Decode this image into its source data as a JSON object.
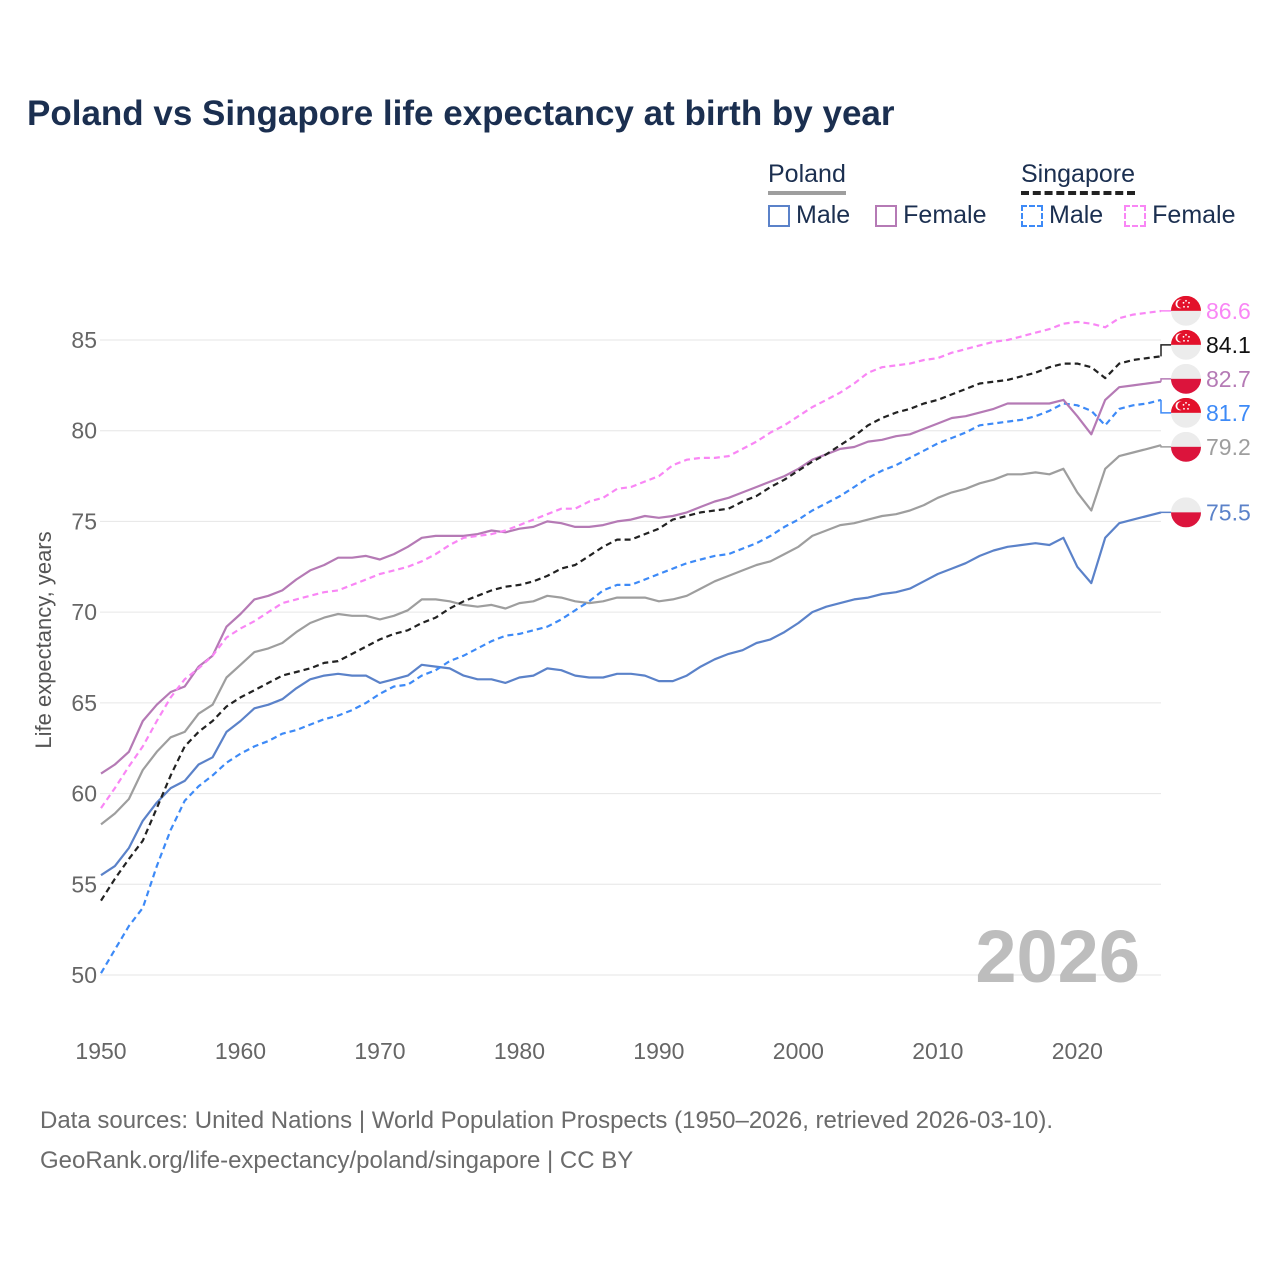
{
  "chart_data": {
    "type": "line",
    "title": "Poland vs Singapore life expectancy at birth by year",
    "xlabel": "",
    "ylabel": "Life expectancy, years",
    "xlim": [
      1950,
      2026
    ],
    "ylim": [
      48,
      88
    ],
    "x_ticks": [
      "1950",
      "1960",
      "1970",
      "1980",
      "1990",
      "2000",
      "2010",
      "2020"
    ],
    "y_ticks": [
      "50",
      "55",
      "60",
      "65",
      "70",
      "75",
      "80",
      "85"
    ],
    "grid": true,
    "current_year_label": "2026",
    "x_start": 1950,
    "legend": {
      "groups": [
        {
          "name": "Poland",
          "line_color": "#9e9e9e",
          "dashed": false,
          "items": [
            {
              "label": "Male",
              "color": "#5b82c9"
            },
            {
              "label": "Female",
              "color": "#b57ab5"
            }
          ]
        },
        {
          "name": "Singapore",
          "line_color": "#222222",
          "dashed": true,
          "items": [
            {
              "label": "Male",
              "color": "#3d8af7"
            },
            {
              "label": "Female",
              "color": "#f986f5"
            }
          ]
        }
      ]
    },
    "series": [
      {
        "name": "Singapore Female",
        "country": "singapore",
        "color": "#f986f5",
        "dashed": true,
        "end_label": "86.6",
        "values": [
          59.2,
          60.3,
          61.5,
          62.6,
          64.0,
          65.3,
          66.3,
          66.9,
          67.6,
          68.6,
          69.1,
          69.5,
          70.0,
          70.5,
          70.7,
          70.9,
          71.1,
          71.2,
          71.5,
          71.8,
          72.1,
          72.3,
          72.5,
          72.8,
          73.2,
          73.7,
          74.1,
          74.2,
          74.3,
          74.5,
          74.8,
          75.1,
          75.4,
          75.7,
          75.7,
          76.1,
          76.3,
          76.8,
          76.9,
          77.2,
          77.5,
          78.1,
          78.4,
          78.5,
          78.5,
          78.6,
          79.0,
          79.4,
          79.9,
          80.3,
          80.8,
          81.3,
          81.7,
          82.1,
          82.6,
          83.2,
          83.5,
          83.6,
          83.7,
          83.9,
          84.0,
          84.3,
          84.5,
          84.7,
          84.9,
          85.0,
          85.2,
          85.4,
          85.6,
          85.9,
          86.0,
          85.9,
          85.7,
          86.2,
          86.4,
          86.5,
          86.6
        ]
      },
      {
        "name": "Singapore",
        "country": "singapore",
        "color": "#222222",
        "dashed": true,
        "end_label": "84.1",
        "values": [
          54.1,
          55.3,
          56.4,
          57.4,
          59.2,
          61.0,
          62.6,
          63.4,
          64.0,
          64.8,
          65.3,
          65.7,
          66.1,
          66.5,
          66.7,
          66.9,
          67.2,
          67.3,
          67.7,
          68.1,
          68.5,
          68.8,
          69.0,
          69.4,
          69.7,
          70.2,
          70.6,
          70.9,
          71.2,
          71.4,
          71.5,
          71.7,
          72.0,
          72.4,
          72.6,
          73.1,
          73.6,
          74.0,
          74.0,
          74.3,
          74.6,
          75.1,
          75.3,
          75.5,
          75.6,
          75.7,
          76.1,
          76.4,
          76.9,
          77.3,
          77.8,
          78.3,
          78.7,
          79.2,
          79.7,
          80.3,
          80.7,
          81.0,
          81.2,
          81.5,
          81.7,
          82.0,
          82.3,
          82.6,
          82.7,
          82.8,
          83.0,
          83.2,
          83.5,
          83.7,
          83.7,
          83.5,
          82.9,
          83.7,
          83.9,
          84.0,
          84.1
        ]
      },
      {
        "name": "Poland Female",
        "country": "poland",
        "color": "#b57ab5",
        "dashed": false,
        "end_label": "82.7",
        "values": [
          61.1,
          61.6,
          62.3,
          64.0,
          64.9,
          65.6,
          65.9,
          67.0,
          67.6,
          69.2,
          69.9,
          70.7,
          70.9,
          71.2,
          71.8,
          72.3,
          72.6,
          73.0,
          73.0,
          73.1,
          72.9,
          73.2,
          73.6,
          74.1,
          74.2,
          74.2,
          74.2,
          74.3,
          74.5,
          74.4,
          74.6,
          74.7,
          75.0,
          74.9,
          74.7,
          74.7,
          74.8,
          75.0,
          75.1,
          75.3,
          75.2,
          75.3,
          75.5,
          75.8,
          76.1,
          76.3,
          76.6,
          76.9,
          77.2,
          77.5,
          77.9,
          78.4,
          78.7,
          79.0,
          79.1,
          79.4,
          79.5,
          79.7,
          79.8,
          80.1,
          80.4,
          80.7,
          80.8,
          81.0,
          81.2,
          81.5,
          81.5,
          81.5,
          81.5,
          81.7,
          80.8,
          79.8,
          81.7,
          82.4,
          82.5,
          82.6,
          82.7
        ]
      },
      {
        "name": "Singapore Male",
        "country": "singapore",
        "color": "#3d8af7",
        "dashed": true,
        "end_label": "81.7",
        "values": [
          50.1,
          51.4,
          52.7,
          53.7,
          56.0,
          58.0,
          59.6,
          60.4,
          61.0,
          61.7,
          62.2,
          62.6,
          62.9,
          63.3,
          63.5,
          63.8,
          64.1,
          64.3,
          64.6,
          65.0,
          65.5,
          65.9,
          66.0,
          66.5,
          66.8,
          67.3,
          67.6,
          68.0,
          68.4,
          68.7,
          68.8,
          69.0,
          69.2,
          69.6,
          70.1,
          70.6,
          71.2,
          71.5,
          71.5,
          71.8,
          72.1,
          72.4,
          72.7,
          72.9,
          73.1,
          73.2,
          73.5,
          73.8,
          74.2,
          74.7,
          75.1,
          75.6,
          76.0,
          76.4,
          76.9,
          77.4,
          77.8,
          78.1,
          78.5,
          78.9,
          79.3,
          79.6,
          79.9,
          80.3,
          80.4,
          80.5,
          80.6,
          80.8,
          81.1,
          81.5,
          81.4,
          81.1,
          80.3,
          81.2,
          81.4,
          81.5,
          81.7
        ]
      },
      {
        "name": "Poland",
        "country": "poland",
        "color": "#9e9e9e",
        "dashed": false,
        "end_label": "79.2",
        "values": [
          58.3,
          58.9,
          59.7,
          61.3,
          62.3,
          63.1,
          63.4,
          64.4,
          64.9,
          66.4,
          67.1,
          67.8,
          68.0,
          68.3,
          68.9,
          69.4,
          69.7,
          69.9,
          69.8,
          69.8,
          69.6,
          69.8,
          70.1,
          70.7,
          70.7,
          70.6,
          70.4,
          70.3,
          70.4,
          70.2,
          70.5,
          70.6,
          70.9,
          70.8,
          70.6,
          70.5,
          70.6,
          70.8,
          70.8,
          70.8,
          70.6,
          70.7,
          70.9,
          71.3,
          71.7,
          72.0,
          72.3,
          72.6,
          72.8,
          73.2,
          73.6,
          74.2,
          74.5,
          74.8,
          74.9,
          75.1,
          75.3,
          75.4,
          75.6,
          75.9,
          76.3,
          76.6,
          76.8,
          77.1,
          77.3,
          77.6,
          77.6,
          77.7,
          77.6,
          77.9,
          76.6,
          75.6,
          77.9,
          78.6,
          78.8,
          79.0,
          79.2
        ]
      },
      {
        "name": "Poland Male",
        "country": "poland",
        "color": "#5b82c9",
        "dashed": false,
        "end_label": "75.5",
        "values": [
          55.5,
          56.0,
          57.0,
          58.5,
          59.5,
          60.3,
          60.7,
          61.6,
          62.0,
          63.4,
          64.0,
          64.7,
          64.9,
          65.2,
          65.8,
          66.3,
          66.5,
          66.6,
          66.5,
          66.5,
          66.1,
          66.3,
          66.5,
          67.1,
          67.0,
          66.9,
          66.5,
          66.3,
          66.3,
          66.1,
          66.4,
          66.5,
          66.9,
          66.8,
          66.5,
          66.4,
          66.4,
          66.6,
          66.6,
          66.5,
          66.2,
          66.2,
          66.5,
          67.0,
          67.4,
          67.7,
          67.9,
          68.3,
          68.5,
          68.9,
          69.4,
          70.0,
          70.3,
          70.5,
          70.7,
          70.8,
          71.0,
          71.1,
          71.3,
          71.7,
          72.1,
          72.4,
          72.7,
          73.1,
          73.4,
          73.6,
          73.7,
          73.8,
          73.7,
          74.1,
          72.5,
          71.6,
          74.1,
          74.9,
          75.1,
          75.3,
          75.5
        ]
      }
    ]
  },
  "footer": {
    "line1": "Data sources: United Nations | World Population Prospects (1950–2026, retrieved 2026-03-10).",
    "line2": "GeoRank.org/life-expectancy/poland/singapore | CC BY"
  }
}
